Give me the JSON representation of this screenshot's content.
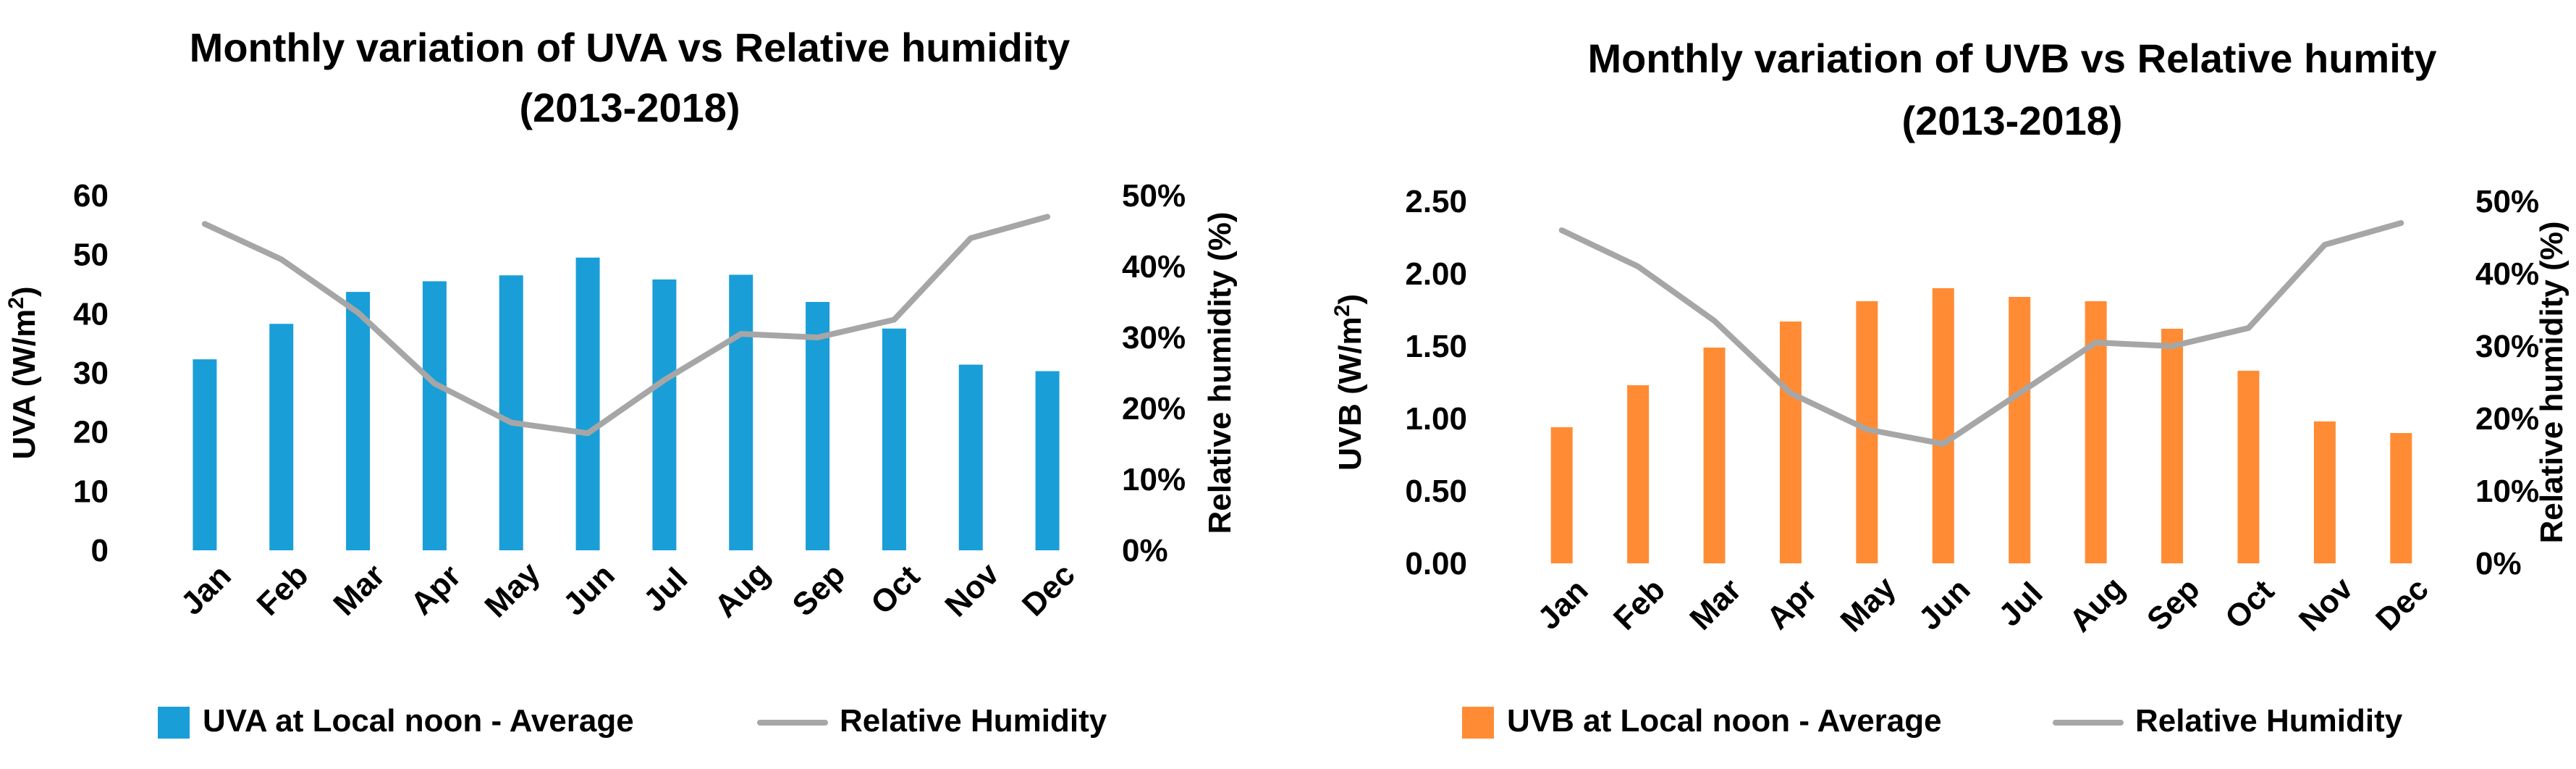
{
  "chart_data": [
    {
      "type": "bar",
      "title": "Monthly variation of UVA vs Relative humidity",
      "subtitle": "(2013-2018)",
      "categories": [
        "Jan",
        "Feb",
        "Mar",
        "Apr",
        "May",
        "Jun",
        "Jul",
        "Aug",
        "Sep",
        "Oct",
        "Nov",
        "Dec"
      ],
      "ylabel_main": "UVA (W/m",
      "ylabel_sup": "2",
      "ylabel_close": ")",
      "y2label": "Relative humidity (%)",
      "ylim": [
        0,
        60
      ],
      "yticks": [
        0,
        10,
        20,
        30,
        40,
        50,
        60
      ],
      "y2lim": [
        0,
        0.5
      ],
      "y2ticks": [
        "0%",
        "10%",
        "20%",
        "30%",
        "40%",
        "50%"
      ],
      "grid": false,
      "legend_position": "bottom",
      "series": [
        {
          "name": "UVA at Local noon - Average",
          "kind": "bar",
          "axis": "left",
          "color": "#1a9ed8",
          "values": [
            32.3,
            38.3,
            43.7,
            45.5,
            46.5,
            49.5,
            45.8,
            46.6,
            42.0,
            37.5,
            31.4,
            30.3
          ]
        },
        {
          "name": "Relative Humidity",
          "kind": "line",
          "axis": "right",
          "color": "#a6a6a6",
          "values": [
            0.46,
            0.41,
            0.335,
            0.235,
            0.18,
            0.165,
            0.24,
            0.305,
            0.3,
            0.325,
            0.44,
            0.47
          ]
        }
      ]
    },
    {
      "type": "bar",
      "title": "Monthly variation of UVB vs Relative humity",
      "subtitle": "(2013-2018)",
      "categories": [
        "Jan",
        "Feb",
        "Mar",
        "Apr",
        "May",
        "Jun",
        "Jul",
        "Aug",
        "Sep",
        "Oct",
        "Nov",
        "Dec"
      ],
      "ylabel_main": "UVB (W/m",
      "ylabel_sup": "2",
      "ylabel_close": ")",
      "y2label": "Relative humidity (%)",
      "ylim": [
        0,
        2.5
      ],
      "yticks": [
        "0.00",
        "0.50",
        "1.00",
        "1.50",
        "2.00",
        "2.50"
      ],
      "y2lim": [
        0,
        0.5
      ],
      "y2ticks": [
        "0%",
        "10%",
        "20%",
        "30%",
        "40%",
        "50%"
      ],
      "grid": false,
      "legend_position": "bottom",
      "series": [
        {
          "name": "UVB at Local noon - Average",
          "kind": "bar",
          "axis": "left",
          "color": "#ff8c35",
          "values": [
            0.94,
            1.23,
            1.49,
            1.67,
            1.81,
            1.9,
            1.84,
            1.81,
            1.62,
            1.33,
            0.98,
            0.9
          ]
        },
        {
          "name": "Relative Humidity",
          "kind": "line",
          "axis": "right",
          "color": "#a6a6a6",
          "values": [
            0.46,
            0.41,
            0.335,
            0.235,
            0.185,
            0.165,
            0.235,
            0.305,
            0.3,
            0.325,
            0.44,
            0.47
          ]
        }
      ]
    }
  ]
}
